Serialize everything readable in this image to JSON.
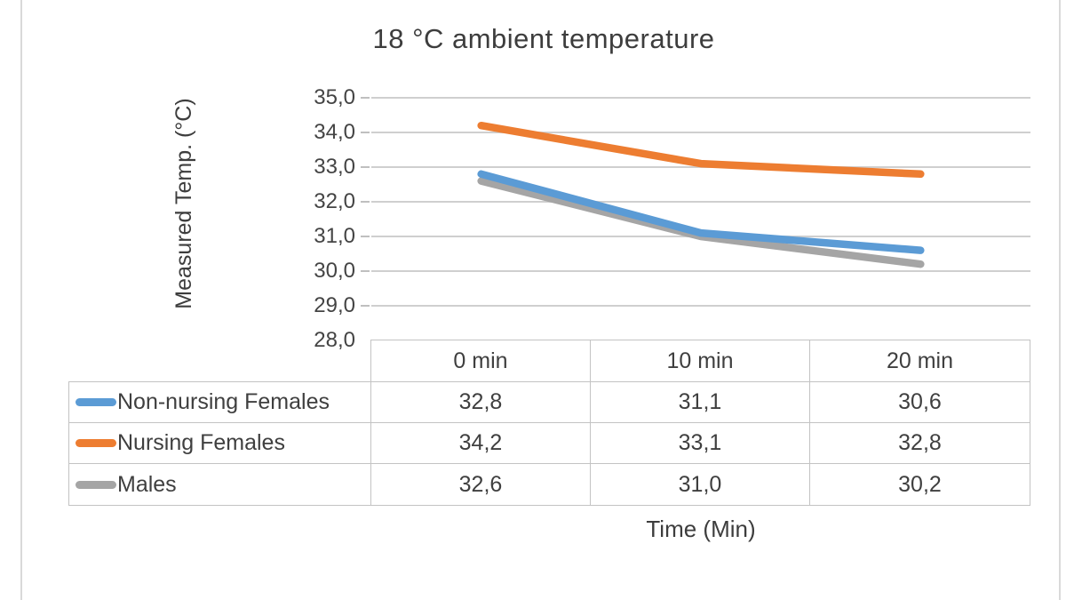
{
  "page": {
    "background": "#ffffff",
    "edge_line_color": "#d9d9d9"
  },
  "chart_data": {
    "type": "line",
    "title": "18 °C ambient temperature",
    "xlabel": "Time (Min)",
    "ylabel": "Measured Temp. (°C)",
    "categories": [
      "0 min",
      "10 min",
      "20 min"
    ],
    "series": [
      {
        "name": "Non-nursing Females",
        "color": "#5B9BD5",
        "values": [
          32.8,
          31.1,
          30.6
        ],
        "display_values": [
          "32,8",
          "31,1",
          "30,6"
        ]
      },
      {
        "name": "Nursing Females",
        "color": "#ED7D31",
        "values": [
          34.2,
          33.1,
          32.8
        ],
        "display_values": [
          "34,2",
          "33,1",
          "32,8"
        ]
      },
      {
        "name": "Males",
        "color": "#A5A5A5",
        "values": [
          32.6,
          31.0,
          30.2
        ],
        "display_values": [
          "32,6",
          "31,0",
          "30,2"
        ]
      }
    ],
    "y_axis": {
      "min": 28,
      "max": 35,
      "step": 1,
      "tick_labels": [
        "35,0",
        "34,0",
        "33,0",
        "32,0",
        "31,0",
        "30,0",
        "29,0",
        "28,0"
      ]
    },
    "grid": true,
    "legend_position": "table-left",
    "gridline_color": "#cfcfcf",
    "tick_mark_color": "#bfbfbf",
    "text_color": "#3d3d3d",
    "draw_order": [
      "Males",
      "Non-nursing Females",
      "Nursing Females"
    ]
  }
}
